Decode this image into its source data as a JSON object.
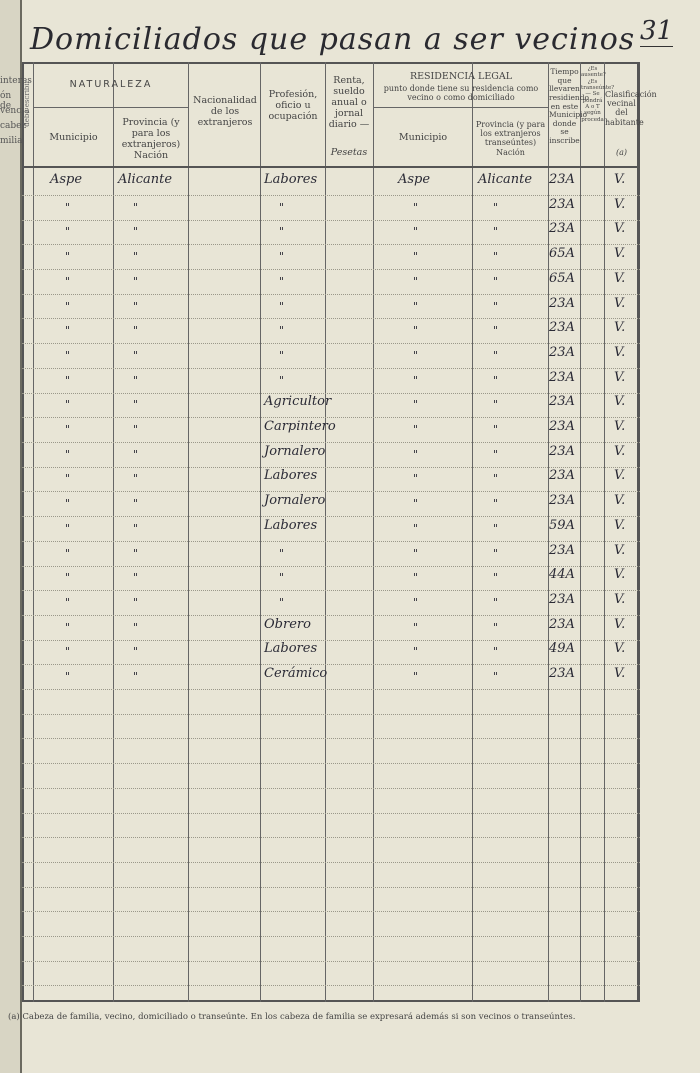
{
  "header": {
    "title": "Domiciliados que pasan a ser vecinos",
    "page_number": "31"
  },
  "left_margin_fragments": [
    "interes",
    "ón de",
    "vencia",
    "cabez",
    "milia"
  ],
  "columns": {
    "side_label": "debe escribir",
    "naturaleza": "NATURALEZA",
    "nat_municipio": "Municipio",
    "nat_provincia": "Provincia (y para los extranjeros) Nación",
    "nacionalidad": "Nacionalidad de los extranjeros",
    "profesion": "Profesión, oficio u ocupación",
    "renta": "Renta, sueldo anual o jornal diario —",
    "renta_unit": "Pesetas",
    "residencia": "RESIDENCIA LEGAL",
    "residencia_sub": "punto donde tiene su residencia como vecino o como domiciliado",
    "res_municipio": "Municipio",
    "res_provincia": "Provincia (y para los extranjeros transeúntes) Nación",
    "tiempo": "Tiempo que llevaren residiendo en este Municipio donde se inscribe",
    "ausente": "¿Es ausente? ¿Es transeúnte? — Se pondrá A o T según proceda",
    "clasificacion": "Clasificación vecinal del habitante",
    "clasificacion_note": "(a)"
  },
  "rows": [
    {
      "mun": "Aspe",
      "prov": "Alicante",
      "prof": "Labores",
      "rmun": "Aspe",
      "rprov": "Alicante",
      "tiempo": "23A",
      "clas": "V."
    },
    {
      "mun": "\"",
      "prov": "\"",
      "prof": "\"",
      "rmun": "\"",
      "rprov": "\"",
      "tiempo": "23A",
      "clas": "V."
    },
    {
      "mun": "\"",
      "prov": "\"",
      "prof": "\"",
      "rmun": "\"",
      "rprov": "\"",
      "tiempo": "23A",
      "clas": "V."
    },
    {
      "mun": "\"",
      "prov": "\"",
      "prof": "\"",
      "rmun": "\"",
      "rprov": "\"",
      "tiempo": "65A",
      "clas": "V."
    },
    {
      "mun": "\"",
      "prov": "\"",
      "prof": "\"",
      "rmun": "\"",
      "rprov": "\"",
      "tiempo": "65A",
      "clas": "V."
    },
    {
      "mun": "\"",
      "prov": "\"",
      "prof": "\"",
      "rmun": "\"",
      "rprov": "\"",
      "tiempo": "23A",
      "clas": "V."
    },
    {
      "mun": "\"",
      "prov": "\"",
      "prof": "\"",
      "rmun": "\"",
      "rprov": "\"",
      "tiempo": "23A",
      "clas": "V."
    },
    {
      "mun": "\"",
      "prov": "\"",
      "prof": "\"",
      "rmun": "\"",
      "rprov": "\"",
      "tiempo": "23A",
      "clas": "V."
    },
    {
      "mun": "\"",
      "prov": "\"",
      "prof": "\"",
      "rmun": "\"",
      "rprov": "\"",
      "tiempo": "23A",
      "clas": "V."
    },
    {
      "mun": "\"",
      "prov": "\"",
      "prof": "Agricultor",
      "rmun": "\"",
      "rprov": "\"",
      "tiempo": "23A",
      "clas": "V."
    },
    {
      "mun": "\"",
      "prov": "\"",
      "prof": "Carpintero",
      "rmun": "\"",
      "rprov": "\"",
      "tiempo": "23A",
      "clas": "V."
    },
    {
      "mun": "\"",
      "prov": "\"",
      "prof": "Jornalero",
      "rmun": "\"",
      "rprov": "\"",
      "tiempo": "23A",
      "clas": "V."
    },
    {
      "mun": "\"",
      "prov": "\"",
      "prof": "Labores",
      "rmun": "\"",
      "rprov": "\"",
      "tiempo": "23A",
      "clas": "V."
    },
    {
      "mun": "\"",
      "prov": "\"",
      "prof": "Jornalero",
      "rmun": "\"",
      "rprov": "\"",
      "tiempo": "23A",
      "clas": "V."
    },
    {
      "mun": "\"",
      "prov": "\"",
      "prof": "Labores",
      "rmun": "\"",
      "rprov": "\"",
      "tiempo": "59A",
      "clas": "V."
    },
    {
      "mun": "\"",
      "prov": "\"",
      "prof": "\"",
      "rmun": "\"",
      "rprov": "\"",
      "tiempo": "23A",
      "clas": "V."
    },
    {
      "mun": "\"",
      "prov": "\"",
      "prof": "\"",
      "rmun": "\"",
      "rprov": "\"",
      "tiempo": "44A",
      "clas": "V."
    },
    {
      "mun": "\"",
      "prov": "\"",
      "prof": "\"",
      "rmun": "\"",
      "rprov": "\"",
      "tiempo": "23A",
      "clas": "V."
    },
    {
      "mun": "\"",
      "prov": "\"",
      "prof": "Obrero",
      "rmun": "\"",
      "rprov": "\"",
      "tiempo": "23A",
      "clas": "V."
    },
    {
      "mun": "\"",
      "prov": "\"",
      "prof": "Labores",
      "rmun": "\"",
      "rprov": "\"",
      "tiempo": "49A",
      "clas": "V."
    },
    {
      "mun": "\"",
      "prov": "\"",
      "prof": "Cerámico",
      "rmun": "\"",
      "rprov": "\"",
      "tiempo": "23A",
      "clas": "V."
    }
  ],
  "footer": {
    "note": "(a) Cabeza de familia, vecino, domiciliado o transeúnte. En los cabeza de familia se expresará además si son vecinos o transeúntes."
  }
}
